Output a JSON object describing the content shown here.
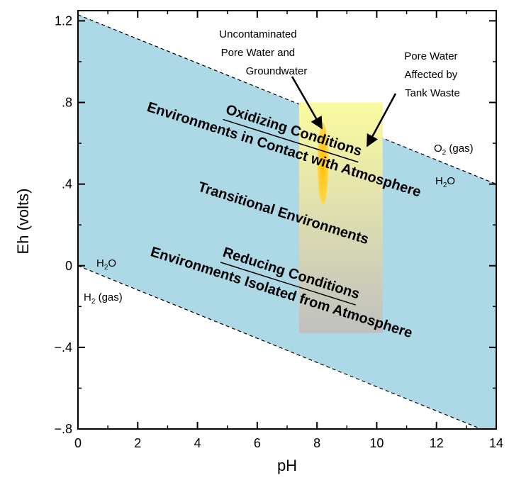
{
  "chart_data": {
    "type": "area",
    "title": "",
    "xlabel": "pH",
    "ylabel": "Eh (volts)",
    "xlim": [
      0,
      14
    ],
    "ylim": [
      -0.8,
      1.25
    ],
    "xticks": [
      0,
      2,
      4,
      6,
      8,
      10,
      12,
      14
    ],
    "yticks": [
      {
        "value": 1.2,
        "label": "1.2"
      },
      {
        "value": 0.8,
        "label": ".8"
      },
      {
        "value": 0.4,
        "label": ".4"
      },
      {
        "value": 0,
        "label": "0"
      },
      {
        "value": -0.4,
        "label": "−.4"
      },
      {
        "value": -0.8,
        "label": "−.8"
      }
    ],
    "grid": false,
    "water_stability_field": {
      "color": "#add8e6",
      "upper_boundary": {
        "x": [
          0,
          14
        ],
        "y": [
          1.23,
          0.4
        ]
      },
      "lower_boundary": {
        "x": [
          0,
          14
        ],
        "y": [
          0.0,
          -0.83
        ]
      }
    },
    "tank_waste_band": {
      "x_range": [
        7.4,
        10.2
      ],
      "y_top": 0.8,
      "y_bottom": -0.33,
      "colors": {
        "top": "#fbfba0",
        "bottom": "#c0c0c0"
      }
    },
    "uncontaminated_ellipse": {
      "center": {
        "x": 8.2,
        "y": 0.5
      },
      "half_width": 0.18,
      "half_height": 0.2,
      "colors": {
        "core": "#ffc000",
        "edge": "#ffd64d"
      }
    },
    "boundary_labels": [
      {
        "id": "o2",
        "main": "O",
        "sub": "2",
        "rest": " (gas)"
      },
      {
        "id": "h2o-upper",
        "main": "H",
        "sub": "2",
        "rest": "O"
      },
      {
        "id": "h2o-lower",
        "main": "H",
        "sub": "2",
        "rest": "O"
      },
      {
        "id": "h2",
        "main": "H",
        "sub": "2",
        "rest": " (gas)"
      }
    ],
    "region_labels": {
      "oxidizing_title": "Oxidizing Conditions",
      "oxidizing_desc": "Environments in Contact with Atmosphere",
      "transitional": "Transitional Environments",
      "reducing_title": "Reducing Conditions",
      "reducing_desc": "Environments Isolated from Atmosphere"
    },
    "annotations": {
      "uncontaminated": [
        "Uncontaminated",
        "Pore Water and",
        "Groundwater"
      ],
      "tank_waste": [
        "Pore Water",
        "Affected by",
        "Tank Waste"
      ]
    }
  }
}
